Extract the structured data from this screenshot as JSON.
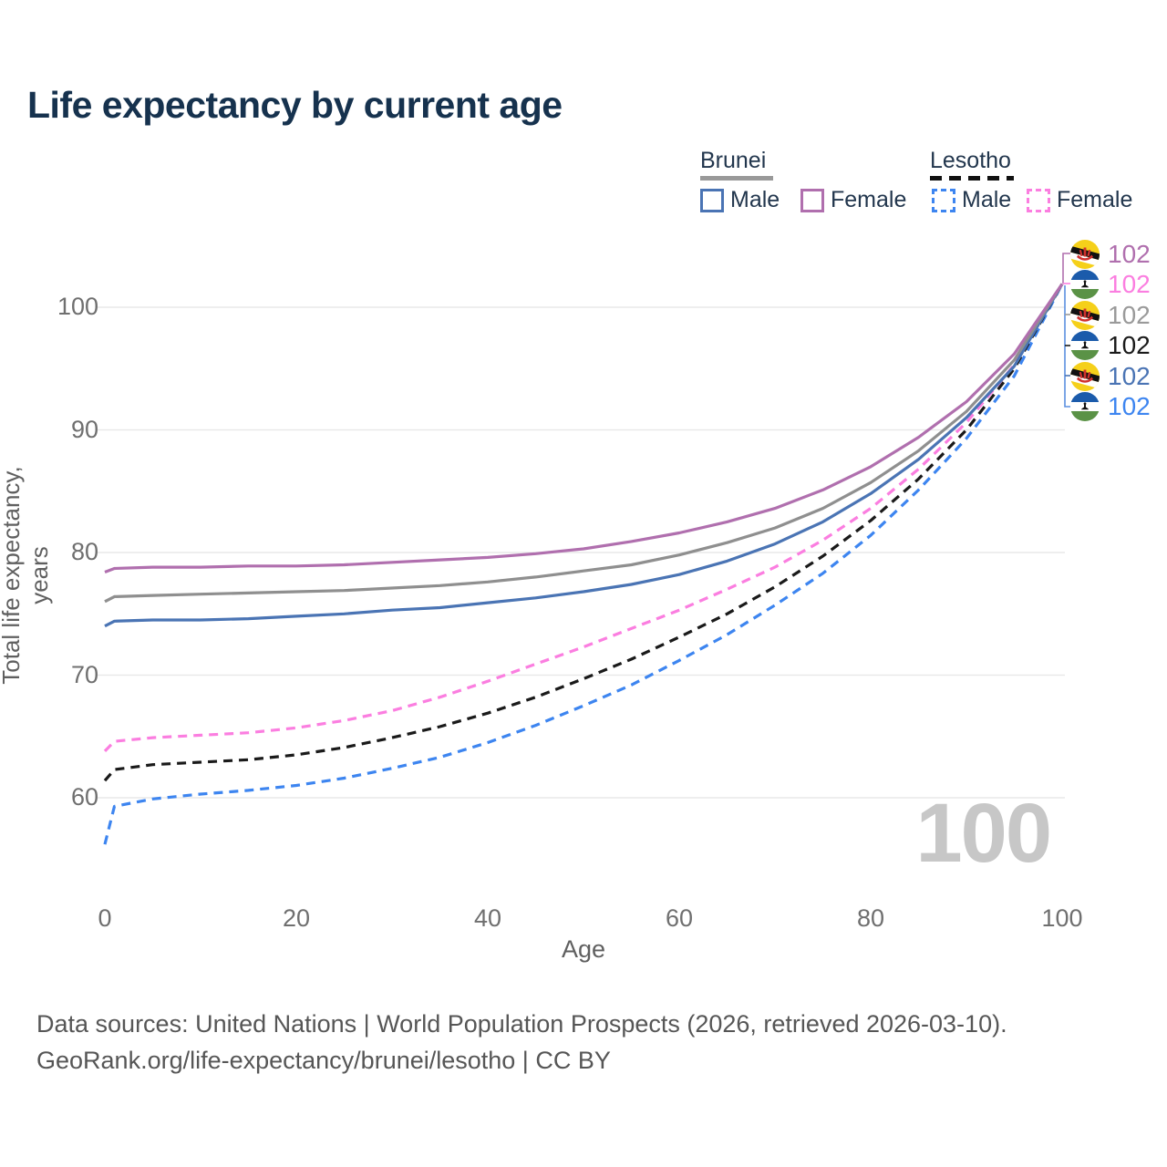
{
  "title": "Life expectancy by current age",
  "legend": {
    "brunei": {
      "label": "Brunei",
      "male": "Male",
      "female": "Female",
      "line_style": "solid",
      "header_swatch_color": "#999999"
    },
    "lesotho": {
      "label": "Lesotho",
      "male": "Male",
      "female": "Female",
      "line_style": "dashed",
      "header_swatch_color": "#111111"
    }
  },
  "watermark_age": "100",
  "endpoints": [
    {
      "flag": "brunei",
      "series": "Brunei Female",
      "value": "102",
      "color": "#b06fae"
    },
    {
      "flag": "lesotho",
      "series": "Lesotho Female",
      "value": "102",
      "color": "#fb7ee0"
    },
    {
      "flag": "brunei",
      "series": "Brunei Total",
      "value": "102",
      "color": "#9a9a9a"
    },
    {
      "flag": "lesotho",
      "series": "Lesotho Total",
      "value": "102",
      "color": "#1a1a1a"
    },
    {
      "flag": "brunei",
      "series": "Brunei Male",
      "value": "102",
      "color": "#4a74b4"
    },
    {
      "flag": "lesotho",
      "series": "Lesotho Male",
      "value": "102",
      "color": "#3d85f0"
    }
  ],
  "footer": {
    "line1": "Data sources: United Nations | World Population Prospects (2026, retrieved 2026-03-10).",
    "line2": "GeoRank.org/life-expectancy/brunei/lesotho | CC BY"
  },
  "chart_data": {
    "type": "line",
    "title": "Life expectancy by current age",
    "xlabel": "Age",
    "ylabel": "Total life expectancy, years",
    "xlim": [
      0,
      100
    ],
    "ylim": [
      56,
      103
    ],
    "x_ticks": [
      0,
      20,
      40,
      60,
      80,
      100
    ],
    "y_ticks": [
      60,
      70,
      80,
      90,
      100
    ],
    "grid": "horizontal-only",
    "legend_position": "top-right",
    "series": [
      {
        "id": "lesotho-male",
        "name": "Lesotho Male",
        "country": "Lesotho",
        "sex": "Male",
        "color": "#3d85f0",
        "dash": true,
        "end_label": "102",
        "points": [
          [
            0,
            56.2
          ],
          [
            1,
            59.3
          ],
          [
            5,
            59.9
          ],
          [
            10,
            60.3
          ],
          [
            15,
            60.6
          ],
          [
            20,
            61.0
          ],
          [
            25,
            61.6
          ],
          [
            30,
            62.4
          ],
          [
            35,
            63.3
          ],
          [
            40,
            64.5
          ],
          [
            45,
            65.9
          ],
          [
            50,
            67.5
          ],
          [
            55,
            69.2
          ],
          [
            60,
            71.2
          ],
          [
            65,
            73.3
          ],
          [
            70,
            75.7
          ],
          [
            75,
            78.3
          ],
          [
            80,
            81.4
          ],
          [
            85,
            85.1
          ],
          [
            90,
            89.3
          ],
          [
            95,
            94.4
          ],
          [
            100,
            101.9
          ]
        ]
      },
      {
        "id": "lesotho-total",
        "name": "Lesotho Total",
        "country": "Lesotho",
        "sex": "Both",
        "color": "#1a1a1a",
        "dash": true,
        "end_label": "102",
        "points": [
          [
            0,
            61.4
          ],
          [
            1,
            62.3
          ],
          [
            5,
            62.7
          ],
          [
            10,
            62.9
          ],
          [
            15,
            63.1
          ],
          [
            20,
            63.5
          ],
          [
            25,
            64.1
          ],
          [
            30,
            64.9
          ],
          [
            35,
            65.8
          ],
          [
            40,
            66.9
          ],
          [
            45,
            68.2
          ],
          [
            50,
            69.7
          ],
          [
            55,
            71.3
          ],
          [
            60,
            73.1
          ],
          [
            65,
            75.0
          ],
          [
            70,
            77.2
          ],
          [
            75,
            79.7
          ],
          [
            80,
            82.6
          ],
          [
            85,
            86.0
          ],
          [
            90,
            90.0
          ],
          [
            95,
            95.0
          ],
          [
            100,
            101.9
          ]
        ]
      },
      {
        "id": "lesotho-female",
        "name": "Lesotho Female",
        "country": "Lesotho",
        "sex": "Female",
        "color": "#fb7ee0",
        "dash": true,
        "end_label": "102",
        "points": [
          [
            0,
            63.8
          ],
          [
            1,
            64.6
          ],
          [
            5,
            64.9
          ],
          [
            10,
            65.1
          ],
          [
            15,
            65.3
          ],
          [
            20,
            65.7
          ],
          [
            25,
            66.3
          ],
          [
            30,
            67.1
          ],
          [
            35,
            68.2
          ],
          [
            40,
            69.5
          ],
          [
            45,
            70.9
          ],
          [
            50,
            72.3
          ],
          [
            55,
            73.8
          ],
          [
            60,
            75.3
          ],
          [
            65,
            77.0
          ],
          [
            70,
            78.8
          ],
          [
            75,
            81.0
          ],
          [
            80,
            83.6
          ],
          [
            85,
            86.8
          ],
          [
            90,
            90.6
          ],
          [
            95,
            95.3
          ],
          [
            100,
            101.9
          ]
        ]
      },
      {
        "id": "brunei-male",
        "name": "Brunei Male",
        "country": "Brunei",
        "sex": "Male",
        "color": "#4a74b4",
        "dash": false,
        "end_label": "102",
        "points": [
          [
            0,
            74.0
          ],
          [
            1,
            74.4
          ],
          [
            5,
            74.5
          ],
          [
            10,
            74.5
          ],
          [
            15,
            74.6
          ],
          [
            20,
            74.8
          ],
          [
            25,
            75.0
          ],
          [
            30,
            75.3
          ],
          [
            35,
            75.5
          ],
          [
            40,
            75.9
          ],
          [
            45,
            76.3
          ],
          [
            50,
            76.8
          ],
          [
            55,
            77.4
          ],
          [
            60,
            78.2
          ],
          [
            65,
            79.3
          ],
          [
            70,
            80.7
          ],
          [
            75,
            82.5
          ],
          [
            80,
            84.8
          ],
          [
            85,
            87.6
          ],
          [
            90,
            91.0
          ],
          [
            95,
            95.2
          ],
          [
            100,
            101.9
          ]
        ]
      },
      {
        "id": "brunei-total",
        "name": "Brunei Total",
        "country": "Brunei",
        "sex": "Both",
        "color": "#8f8f8f",
        "dash": false,
        "end_label": "102",
        "points": [
          [
            0,
            76.0
          ],
          [
            1,
            76.4
          ],
          [
            5,
            76.5
          ],
          [
            10,
            76.6
          ],
          [
            15,
            76.7
          ],
          [
            20,
            76.8
          ],
          [
            25,
            76.9
          ],
          [
            30,
            77.1
          ],
          [
            35,
            77.3
          ],
          [
            40,
            77.6
          ],
          [
            45,
            78.0
          ],
          [
            50,
            78.5
          ],
          [
            55,
            79.0
          ],
          [
            60,
            79.8
          ],
          [
            65,
            80.8
          ],
          [
            70,
            82.0
          ],
          [
            75,
            83.6
          ],
          [
            80,
            85.7
          ],
          [
            85,
            88.3
          ],
          [
            90,
            91.5
          ],
          [
            95,
            95.7
          ],
          [
            100,
            101.9
          ]
        ]
      },
      {
        "id": "brunei-female",
        "name": "Brunei Female",
        "country": "Brunei",
        "sex": "Female",
        "color": "#b06fae",
        "dash": false,
        "end_label": "102",
        "points": [
          [
            0,
            78.4
          ],
          [
            1,
            78.7
          ],
          [
            5,
            78.8
          ],
          [
            10,
            78.8
          ],
          [
            15,
            78.9
          ],
          [
            20,
            78.9
          ],
          [
            25,
            79.0
          ],
          [
            30,
            79.2
          ],
          [
            35,
            79.4
          ],
          [
            40,
            79.6
          ],
          [
            45,
            79.9
          ],
          [
            50,
            80.3
          ],
          [
            55,
            80.9
          ],
          [
            60,
            81.6
          ],
          [
            65,
            82.5
          ],
          [
            70,
            83.6
          ],
          [
            75,
            85.1
          ],
          [
            80,
            87.0
          ],
          [
            85,
            89.4
          ],
          [
            90,
            92.3
          ],
          [
            95,
            96.2
          ],
          [
            100,
            101.9
          ]
        ]
      }
    ]
  }
}
